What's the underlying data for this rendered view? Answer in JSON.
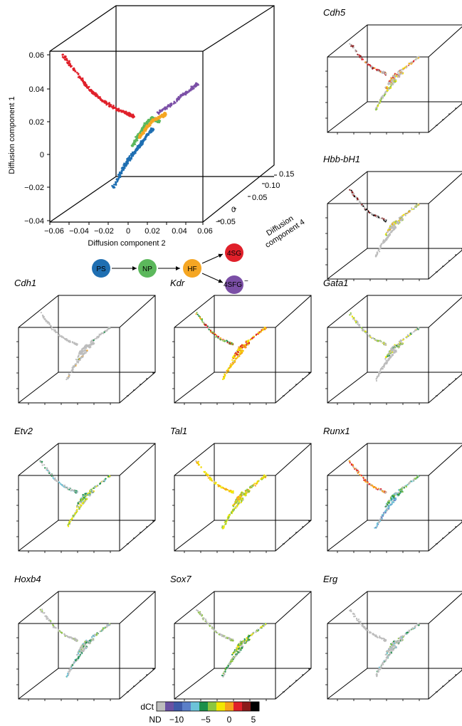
{
  "main": {
    "yaxis": {
      "label": "Diffusion component 1",
      "ticks": [
        "0.06",
        "0.04",
        "0.02",
        "0",
        "−0.02",
        "−0.04"
      ]
    },
    "xaxis": {
      "label": "Diffusion component 2",
      "ticks": [
        "−0.06",
        "−0.04",
        "−0.02",
        "0",
        "0.02",
        "0.04",
        "0.06"
      ]
    },
    "zaxis": {
      "label_line1": "Diffusion",
      "label_line2": "component 4",
      "ticks": [
        "0.15",
        "0.10",
        "0.05",
        "0",
        "−0.05"
      ]
    }
  },
  "lineage": {
    "nodes": [
      {
        "label": "PS",
        "color": "#1f6fb2"
      },
      {
        "label": "NP",
        "color": "#5cb85c"
      },
      {
        "label": "HF",
        "color": "#f5a623"
      },
      {
        "label": "4SG",
        "color": "#e0202a"
      },
      {
        "label": "4SFG",
        "suffix": "−",
        "color": "#7b4fa6"
      }
    ]
  },
  "gene_panels": [
    {
      "title": "Cdh5"
    },
    {
      "title": "Hbb-bH1"
    },
    {
      "title": "Cdh1"
    },
    {
      "title": "Kdr"
    },
    {
      "title": "Gata1"
    },
    {
      "title": "Etv2"
    },
    {
      "title": "Tal1"
    },
    {
      "title": "Runx1"
    },
    {
      "title": "Hoxb4"
    },
    {
      "title": "Sox7"
    },
    {
      "title": "Erg"
    }
  ],
  "colorbar": {
    "title": "dCt",
    "colors": [
      "#bdbdbd",
      "#6a51a3",
      "#3f5aa8",
      "#5b7fc8",
      "#6cc3d9",
      "#1b8f4a",
      "#8cc63f",
      "#f2e700",
      "#f7a21b",
      "#e0202a",
      "#8b1a1a",
      "#000000"
    ],
    "tick_labels": [
      "ND",
      "−10",
      "−5",
      "0",
      "5"
    ]
  },
  "chart_data": [
    {
      "type": "scatter",
      "title": "",
      "xlabel": "Diffusion component 2",
      "ylabel": "Diffusion component 1",
      "zlabel": "Diffusion component 4",
      "xlim": [
        -0.06,
        0.06
      ],
      "ylim": [
        -0.04,
        0.06
      ],
      "zlim": [
        -0.05,
        0.15
      ],
      "series": [
        {
          "name": "PS",
          "color": "#1f6fb2",
          "x": [
            -0.01,
            -0.005,
            0.0,
            0.005,
            0.01,
            0.015,
            0.02
          ],
          "y": [
            -0.02,
            -0.012,
            -0.005,
            0.0,
            0.005,
            0.01,
            0.015
          ]
        },
        {
          "name": "NP",
          "color": "#5cb85c",
          "x": [
            0.005,
            0.01,
            0.015,
            0.02,
            0.025
          ],
          "y": [
            0.005,
            0.012,
            0.018,
            0.022,
            0.02
          ]
        },
        {
          "name": "HF",
          "color": "#f5a623",
          "x": [
            0.01,
            0.015,
            0.02,
            0.025,
            0.03
          ],
          "y": [
            0.01,
            0.015,
            0.02,
            0.022,
            0.024
          ]
        },
        {
          "name": "4SG",
          "color": "#e0202a",
          "x": [
            -0.05,
            -0.04,
            -0.03,
            -0.02,
            -0.01,
            0.0,
            0.005
          ],
          "y": [
            0.06,
            0.05,
            0.04,
            0.033,
            0.028,
            0.025,
            0.023
          ]
        },
        {
          "name": "4SFG−",
          "color": "#7b4fa6",
          "x": [
            0.025,
            0.035,
            0.045,
            0.055
          ],
          "y": [
            0.025,
            0.03,
            0.036,
            0.042
          ]
        }
      ]
    },
    {
      "type": "scatter",
      "title": "Cdh5",
      "series": []
    },
    {
      "type": "scatter",
      "title": "Hbb-bH1",
      "series": []
    },
    {
      "type": "scatter",
      "title": "Cdh1",
      "series": []
    },
    {
      "type": "scatter",
      "title": "Kdr",
      "series": []
    },
    {
      "type": "scatter",
      "title": "Gata1",
      "series": []
    },
    {
      "type": "scatter",
      "title": "Etv2",
      "series": []
    },
    {
      "type": "scatter",
      "title": "Tal1",
      "series": []
    },
    {
      "type": "scatter",
      "title": "Runx1",
      "series": []
    },
    {
      "type": "scatter",
      "title": "Hoxb4",
      "series": []
    },
    {
      "type": "scatter",
      "title": "Sox7",
      "series": []
    },
    {
      "type": "scatter",
      "title": "Erg",
      "series": []
    }
  ]
}
